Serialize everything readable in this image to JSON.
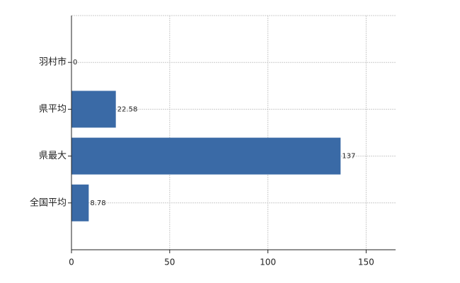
{
  "chart_data": {
    "type": "bar",
    "orientation": "horizontal",
    "categories": [
      "羽村市",
      "県平均",
      "県最大",
      "全国平均"
    ],
    "values": [
      0,
      22.58,
      137,
      8.78
    ],
    "color": "#3a6aa6",
    "xlim": [
      0,
      165
    ],
    "xticks": [
      0,
      50,
      100,
      150
    ],
    "grid": true
  }
}
